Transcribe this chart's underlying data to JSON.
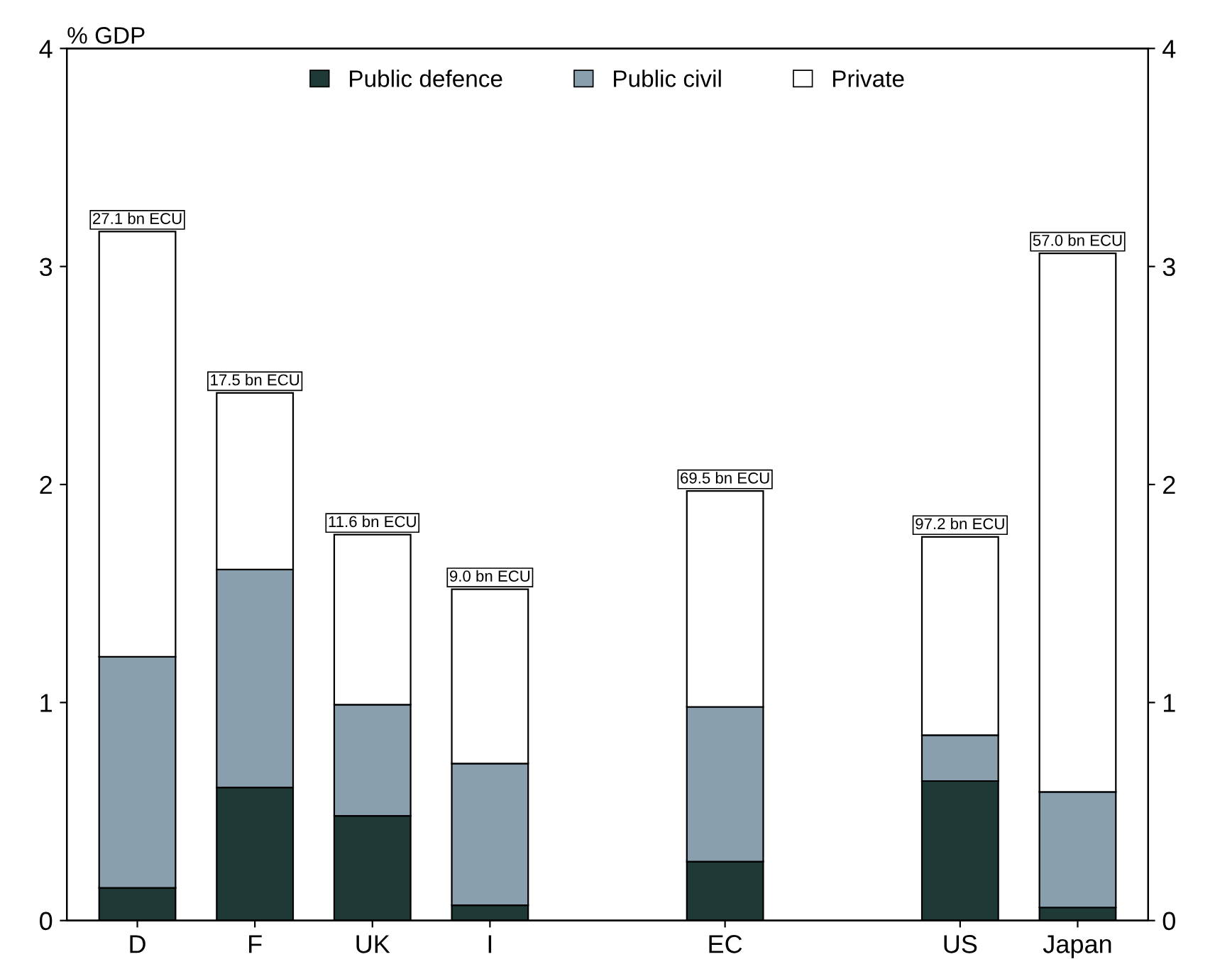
{
  "chart_data": {
    "type": "bar",
    "stacked": true,
    "ylabel": "% GDP",
    "categories": [
      "D",
      "F",
      "UK",
      "I",
      null,
      "EC",
      null,
      "US",
      "Japan"
    ],
    "series": [
      {
        "name": "Public defence",
        "color": "#1f3a36",
        "values": [
          0.15,
          0.61,
          0.48,
          0.07,
          null,
          0.27,
          null,
          0.64,
          0.06
        ]
      },
      {
        "name": "Public civil",
        "color": "#8a9fae",
        "values": [
          1.06,
          1.0,
          0.51,
          0.65,
          null,
          0.71,
          null,
          0.21,
          0.53
        ]
      },
      {
        "name": "Private",
        "color": "#ffffff",
        "values": [
          1.95,
          0.81,
          0.78,
          0.8,
          null,
          0.99,
          null,
          0.91,
          2.47
        ]
      }
    ],
    "annotations": [
      {
        "text": "27.1 bn ECU",
        "x": "D",
        "y": 3.16
      },
      {
        "text": "17.5 bn ECU",
        "x": "F",
        "y": 2.42
      },
      {
        "text": "11.6 bn ECU",
        "x": "UK",
        "y": 1.77
      },
      {
        "text": "9.0 bn ECU",
        "x": "I",
        "y": 1.52
      },
      {
        "text": "69.5 bn ECU",
        "x": "EC",
        "y": 1.97
      },
      {
        "text": "97.2 bn ECU",
        "x": "US",
        "y": 1.76
      },
      {
        "text": "57.0 bn ECU",
        "x": "Japan",
        "y": 3.06
      }
    ],
    "ylim": [
      0,
      4
    ],
    "yticks": [
      0,
      1,
      2,
      3,
      4
    ],
    "y2lim": [
      0,
      4
    ],
    "y2ticks": [
      0,
      1,
      2,
      3,
      4
    ],
    "grid": false,
    "legend": "top"
  }
}
